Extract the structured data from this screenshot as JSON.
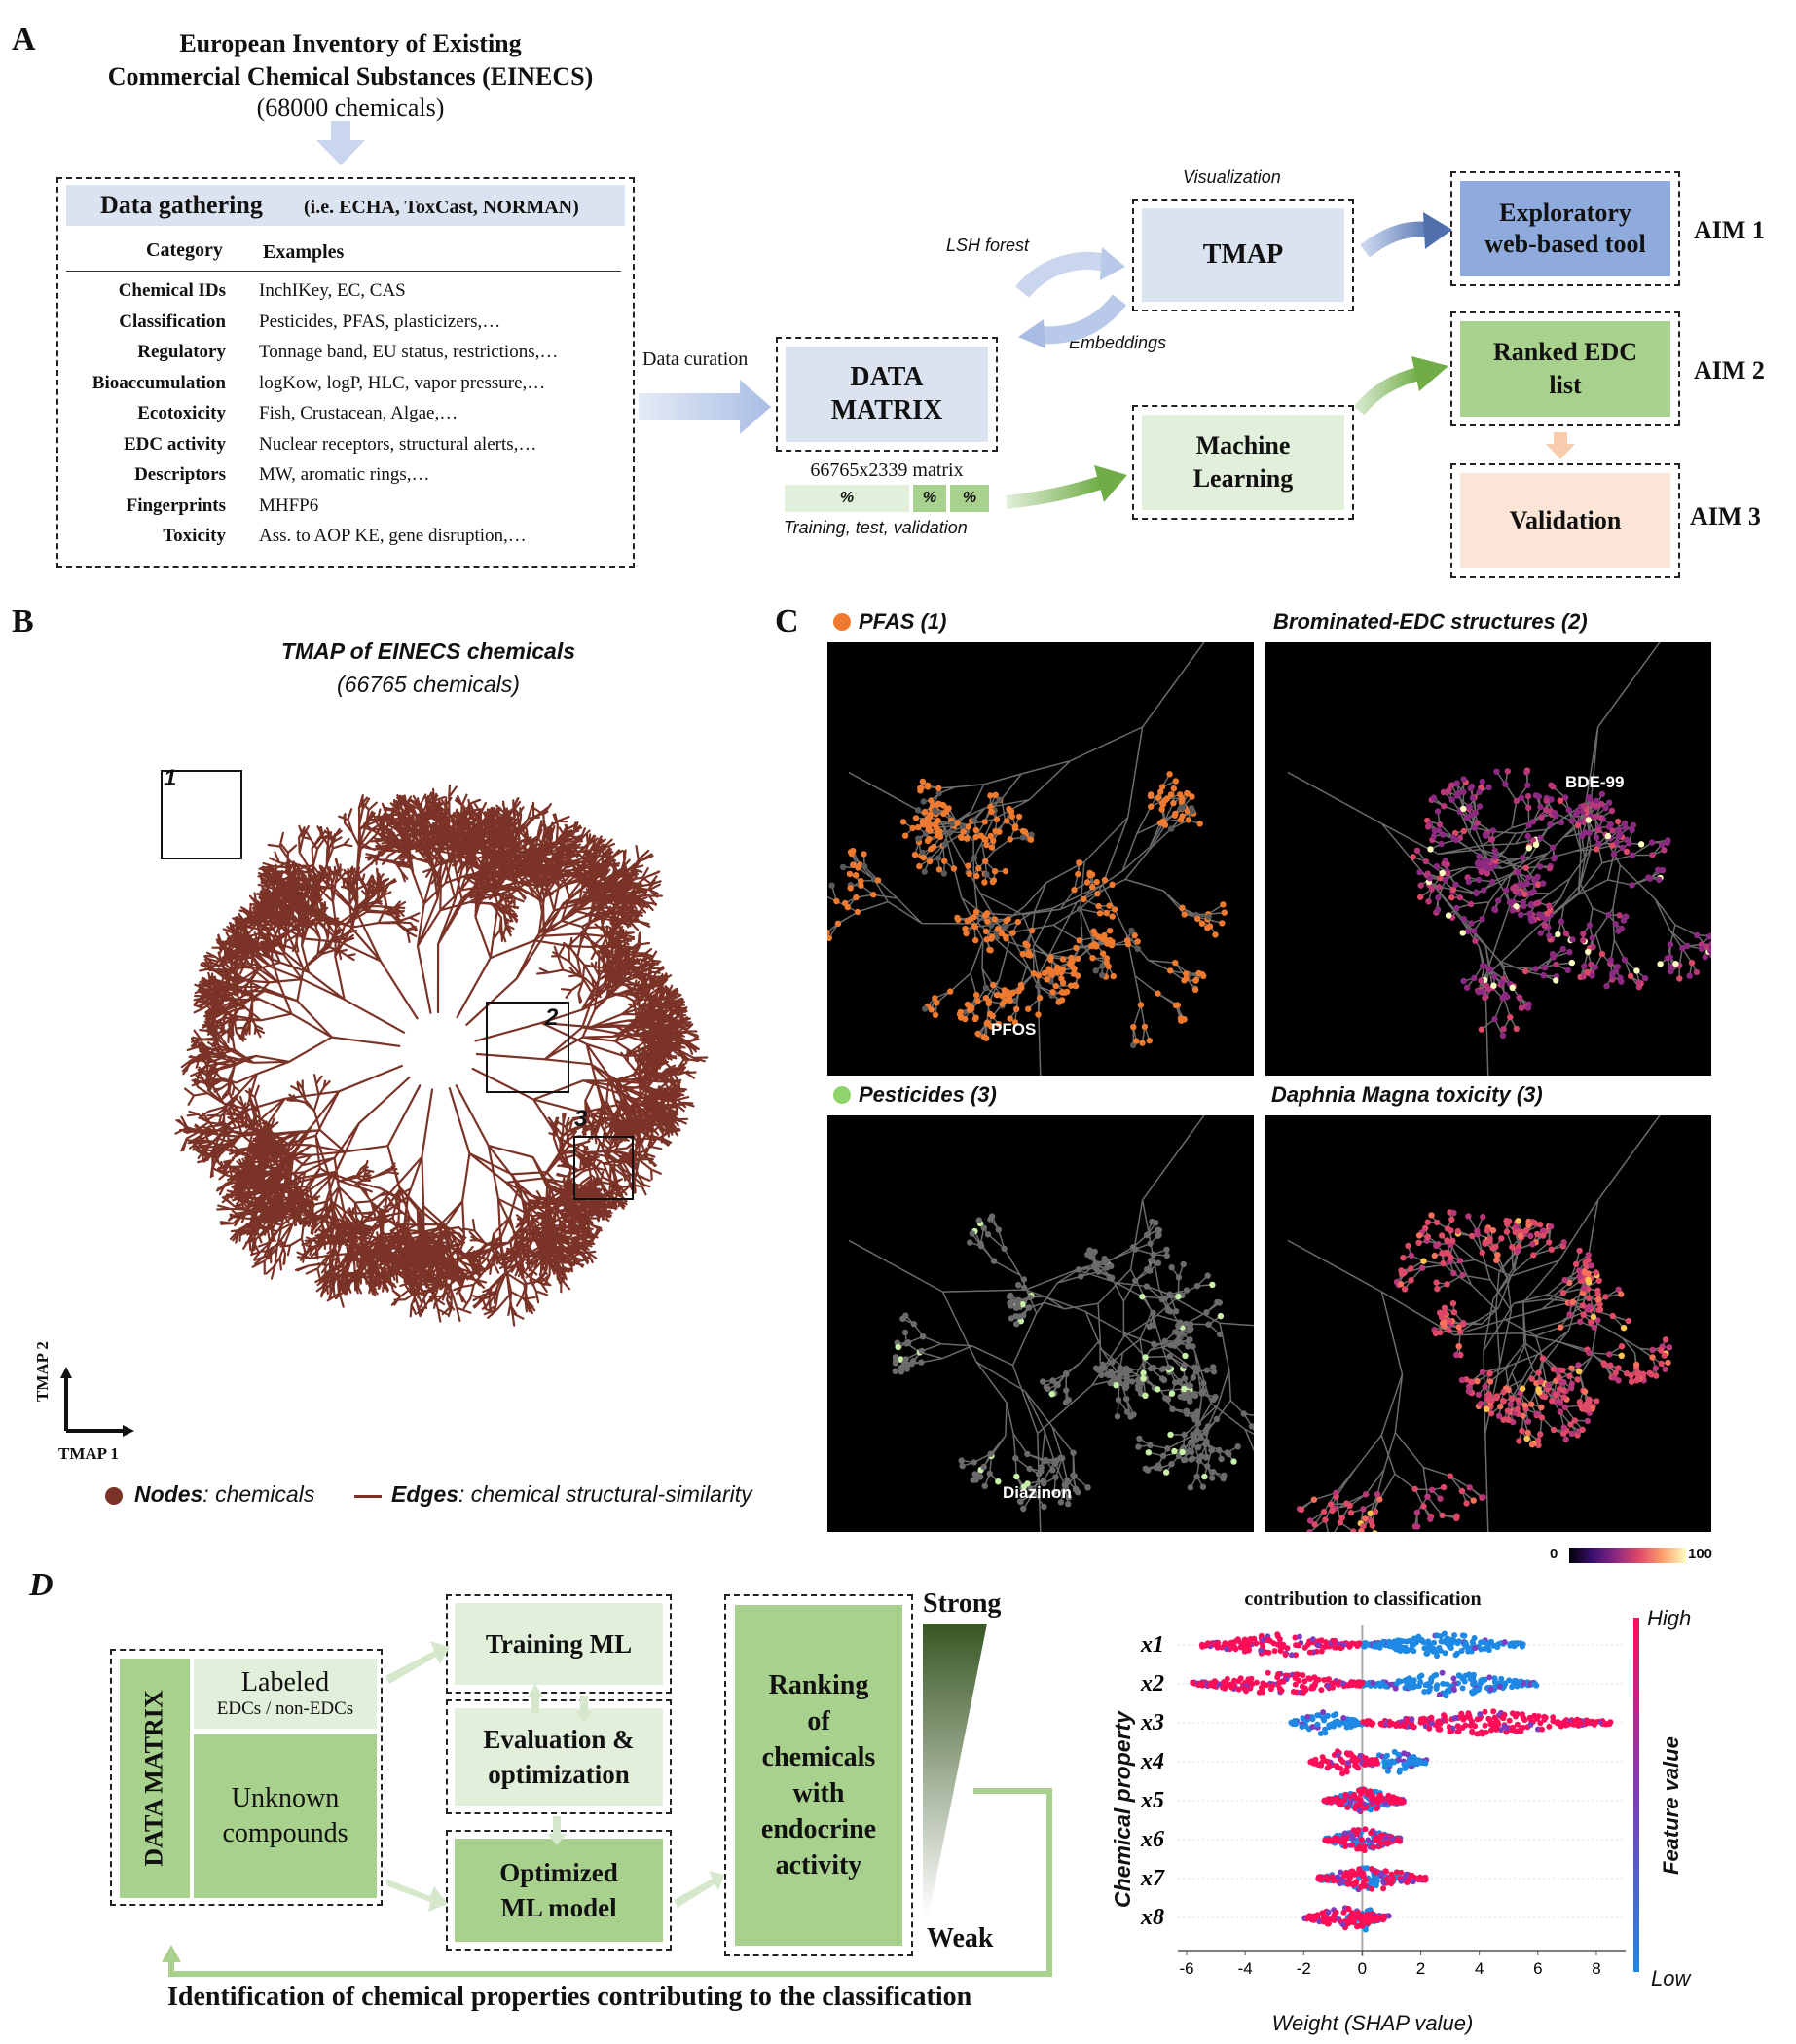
{
  "panel_a": {
    "letter": "A",
    "title_line1": "European Inventory of Existing",
    "title_line2": "Commercial Chemical Substances (EINECS)",
    "title_line3": "(68000 chemicals)",
    "data_gathering": "Data gathering",
    "data_gathering_sources": "(i.e. ECHA, ToxCast, NORMAN)",
    "col_category": "Category",
    "col_examples": "Examples",
    "rows": [
      {
        "category": "Chemical IDs",
        "examples": "InchIKey, EC, CAS"
      },
      {
        "category": "Classification",
        "examples": "Pesticides, PFAS, plasticizers,…"
      },
      {
        "category": "Regulatory",
        "examples": "Tonnage band, EU status, restrictions,…"
      },
      {
        "category": "Bioaccumulation",
        "examples": "logKow, logP, HLC, vapor pressure,…"
      },
      {
        "category": "Ecotoxicity",
        "examples": "Fish, Crustacean, Algae,…"
      },
      {
        "category": "EDC activity",
        "examples": "Nuclear receptors, structural alerts,…"
      },
      {
        "category": "Descriptors",
        "examples": "MW, aromatic rings,…"
      },
      {
        "category": "Fingerprints",
        "examples": "MHFP6"
      },
      {
        "category": "Toxicity",
        "examples": "Ass. to AOP KE, gene disruption,…"
      }
    ],
    "data_curation": "Data curation",
    "data_matrix_line1": "DATA",
    "data_matrix_line2": "MATRIX",
    "matrix_size": "66765x2339 matrix",
    "split_labels": [
      "%",
      "%",
      "%"
    ],
    "split_caption": "Training, test, validation",
    "lsh_forest": "LSH forest",
    "embeddings": "Embeddings",
    "visualization": "Visualization",
    "tmap": "TMAP",
    "ml_line1": "Machine",
    "ml_line2": "Learning",
    "exploratory_line1": "Exploratory",
    "exploratory_line2": "web-based tool",
    "aim1": "AIM 1",
    "ranked_line1": "Ranked EDC",
    "ranked_line2": "list",
    "aim2": "AIM 2",
    "validation": "Validation",
    "aim3": "AIM 3",
    "colors": {
      "blue_box": "#dbe3f1",
      "blue_dark": "#8faadc",
      "green_box": "#e2efda",
      "green_dark": "#a9d18e",
      "peach": "#fbe5d6"
    }
  },
  "panel_b": {
    "letter": "B",
    "title": "TMAP of EINECS chemicals",
    "subtitle": "(66765 chemicals)",
    "box_labels": [
      "1",
      "2",
      "3"
    ],
    "axis_y": "TMAP 2",
    "axis_x": "TMAP 1",
    "legend_nodes_bold": "Nodes",
    "legend_nodes_rest": ": chemicals",
    "legend_edges_bold": "Edges",
    "legend_edges_rest": ": chemical structural-similarity",
    "node_color": "#7b3328"
  },
  "panel_c": {
    "letter": "C",
    "titles": [
      "PFAS (1)",
      "Brominated-EDC structures (2)",
      "Pesticides (3)",
      "Daphnia Magna toxicity (3)"
    ],
    "labels": {
      "pfos": "PFOS",
      "bde99": "BDE-99",
      "diazinon": "Diazinon"
    },
    "colorbar_min": "0",
    "colorbar_max": "100",
    "pfas_color": "#ef7a2f",
    "pesticide_color": "#8ed46a"
  },
  "panel_d": {
    "letter": "D",
    "data_matrix": "DATA MATRIX",
    "labeled_line1": "Labeled",
    "labeled_line2": "EDCs / non-EDCs",
    "unknown_line1": "Unknown",
    "unknown_line2": "compounds",
    "training": "Training ML",
    "eval_line1": "Evaluation &",
    "eval_line2": "optimization",
    "optimized_line1": "Optimized",
    "optimized_line2": "ML model",
    "ranking_lines": [
      "Ranking",
      "of",
      "chemicals",
      "with",
      "endocrine",
      "activity"
    ],
    "strong": "Strong",
    "weak": "Weak",
    "bottom_caption": "Identification of chemical properties contributing to the classification",
    "shap_title": "contribution to classification",
    "shap_ylabel": "Chemical property",
    "shap_xlabel": "Weight (SHAP value)",
    "shap_features": [
      "x1",
      "x2",
      "x3",
      "x4",
      "x5",
      "x6",
      "x7",
      "x8"
    ],
    "shap_ticks": [
      "-6",
      "-4",
      "-2",
      "0",
      "2",
      "4",
      "6",
      "8"
    ],
    "feature_value": "Feature value",
    "high": "High",
    "low": "Low"
  },
  "chart_data": {
    "type": "scatter",
    "title": "contribution to classification",
    "xlabel": "Weight (SHAP value)",
    "ylabel": "Chemical property",
    "xlim": [
      -6.3,
      9
    ],
    "x_ticks": [
      -6,
      -4,
      -2,
      0,
      2,
      4,
      6,
      8
    ],
    "categories": [
      "x1",
      "x2",
      "x3",
      "x4",
      "x5",
      "x6",
      "x7",
      "x8"
    ],
    "series": [
      {
        "name": "x1",
        "high_range": [
          -5.5,
          0
        ],
        "low_range": [
          0,
          5.5
        ]
      },
      {
        "name": "x2",
        "high_range": [
          -5.8,
          0
        ],
        "low_range": [
          0,
          6
        ]
      },
      {
        "name": "x3",
        "low_range": [
          -2.5,
          0
        ],
        "high_range": [
          0,
          8.5
        ]
      },
      {
        "name": "x4",
        "high_range": [
          -1.8,
          0.5
        ],
        "low_range": [
          0,
          2.2
        ]
      },
      {
        "name": "x5",
        "high_range": [
          -1.3,
          1.5
        ],
        "low_range": [
          -1.3,
          1.5
        ]
      },
      {
        "name": "x6",
        "high_range": [
          -1.3,
          1.3
        ],
        "low_range": [
          -1.3,
          1.3
        ]
      },
      {
        "name": "x7",
        "high_range": [
          -1.5,
          2.2
        ],
        "low_range": [
          -1.5,
          1.5
        ]
      },
      {
        "name": "x8",
        "high_range": [
          -2,
          1
        ],
        "low_range": [
          -0.5,
          0.7
        ]
      }
    ],
    "colorbar": {
      "high": "High",
      "low": "Low",
      "label": "Feature value",
      "high_color": "#ff0d57",
      "low_color": "#1e88e5"
    }
  }
}
